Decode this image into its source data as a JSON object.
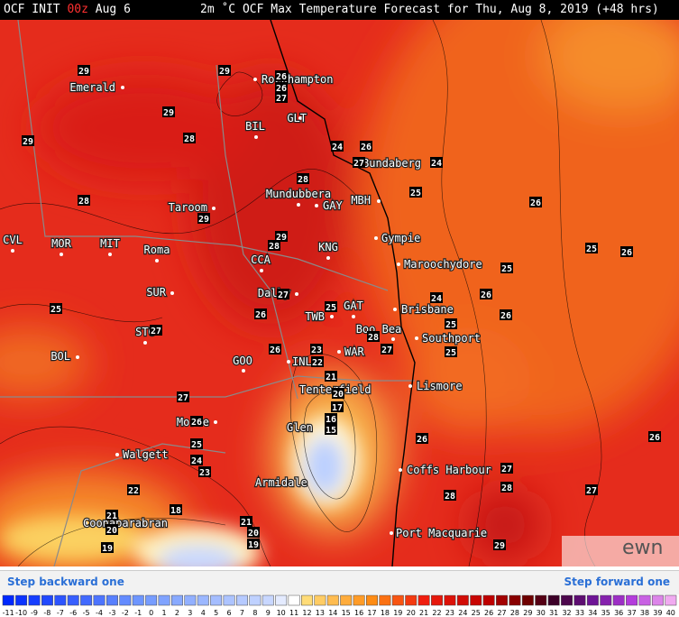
{
  "header": {
    "init": "OCF INIT",
    "run": "00z",
    "date": "Aug 6",
    "title": "2m ˚C OCF Max Temperature Forecast for Thu, Aug 8, 2019 (+48 hrs)"
  },
  "places": [
    "Emerald",
    "Rockhampton",
    "GLT",
    "BIL",
    "Bundaberg",
    "Mundubbera",
    "GAY",
    "MBH",
    "Taroom",
    "Gympie",
    "CVL",
    "MOR",
    "MIT",
    "Roma",
    "KNG",
    "CCA",
    "Maroochydore",
    "SUR",
    "Dalby",
    "Brisbane",
    "GAT",
    "TWB",
    "Boo Bea",
    "Southport",
    "STG",
    "BOL",
    "WAR",
    "GOO",
    "INL",
    "Tenterfield",
    "Lismore",
    "Moree",
    "Walgett",
    "Glen",
    "Coffs Harbour",
    "Armidale",
    "Coonabarabran",
    "Port Macquarie"
  ],
  "contour_labels": [
    "29",
    "29",
    "26",
    "26",
    "27",
    "29",
    "29",
    "28",
    "24",
    "26",
    "27",
    "24",
    "28",
    "25",
    "28",
    "26",
    "29",
    "29",
    "28",
    "25",
    "26",
    "25",
    "24",
    "26",
    "27",
    "25",
    "25",
    "26",
    "26",
    "25",
    "27",
    "28",
    "27",
    "23",
    "26",
    "25",
    "22",
    "21",
    "27",
    "20",
    "17",
    "26",
    "16",
    "15",
    "26",
    "26",
    "25",
    "24",
    "23",
    "27",
    "22",
    "28",
    "27",
    "28",
    "18",
    "21",
    "21",
    "20",
    "20",
    "19",
    "29",
    "19"
  ],
  "nav": {
    "back": "Step backward one",
    "forward": "Step forward one"
  },
  "colorbar": {
    "labels": [
      -11,
      -10,
      -9,
      -8,
      -7,
      -6,
      -5,
      -4,
      -3,
      -2,
      -1,
      0,
      1,
      2,
      3,
      4,
      5,
      6,
      7,
      8,
      9,
      10,
      11,
      12,
      13,
      14,
      15,
      16,
      17,
      18,
      19,
      20,
      21,
      22,
      23,
      24,
      25,
      26,
      27,
      28,
      29,
      30,
      31,
      32,
      33,
      34,
      35,
      36,
      37,
      38,
      39,
      40
    ]
  },
  "logo": "ewn"
}
